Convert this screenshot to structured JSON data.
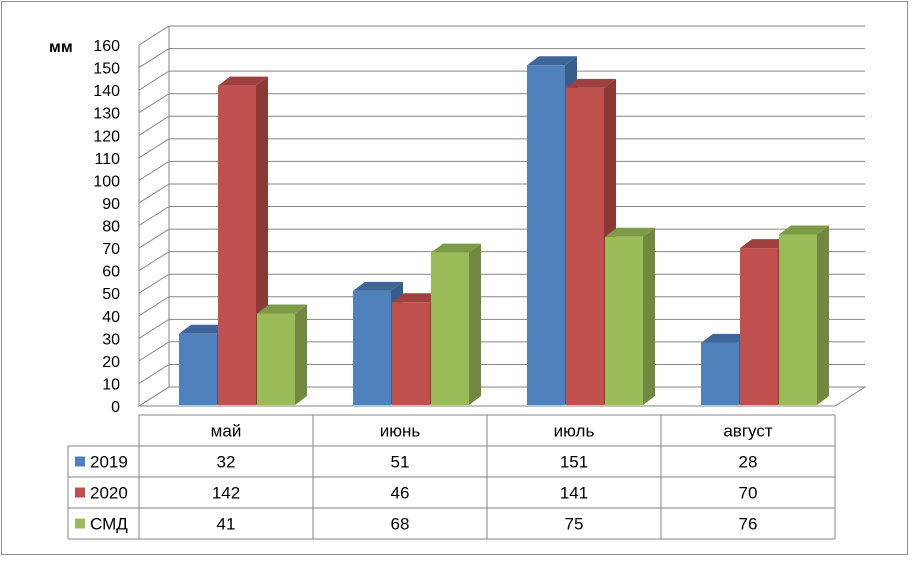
{
  "chart_data": {
    "type": "bar",
    "title": "",
    "ylabel": "мм",
    "xlabel": "",
    "ylim": [
      0,
      160
    ],
    "ytick_step": 10,
    "grid": true,
    "three_d": true,
    "legend": "data-table",
    "categories": [
      "май",
      "июнь",
      "июль",
      "август"
    ],
    "series": [
      {
        "name": "2019",
        "color": "#4f81bd",
        "side_color": "#385d8a",
        "top_color": "#3e669a",
        "values": [
          32,
          51,
          151,
          28
        ]
      },
      {
        "name": "2020",
        "color": "#c0504d",
        "side_color": "#8c3836",
        "top_color": "#9e403d",
        "values": [
          142,
          46,
          141,
          70
        ]
      },
      {
        "name": "СМД",
        "color": "#9bbb59",
        "side_color": "#71893f",
        "top_color": "#7d9a47",
        "values": [
          41,
          68,
          75,
          76
        ]
      }
    ],
    "table_values": [
      [
        "32",
        "51",
        "151",
        "28"
      ],
      [
        "142",
        "46",
        "141",
        "70"
      ],
      [
        "41",
        "68",
        "75",
        "76"
      ]
    ]
  }
}
